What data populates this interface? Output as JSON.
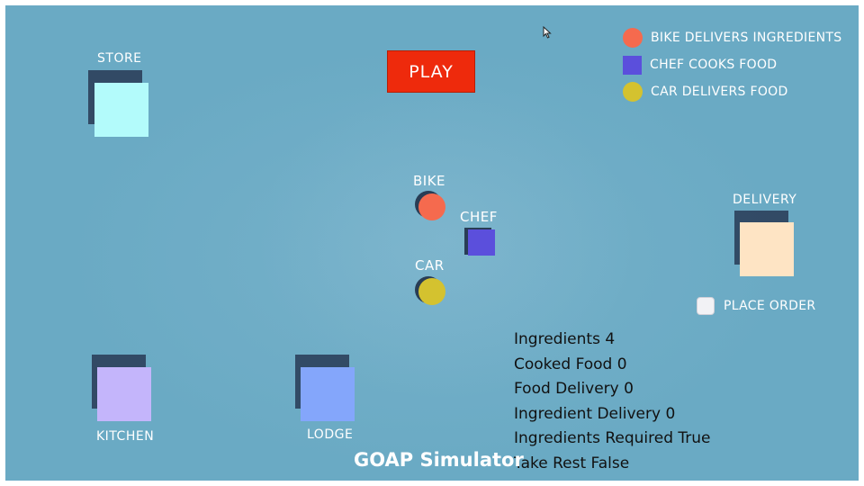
{
  "play": {
    "label": "PLAY"
  },
  "legend": [
    {
      "label": "BIKE DELIVERS INGREDIENTS",
      "shape": "circle",
      "color": "#f56a4e"
    },
    {
      "label": "CHEF COOKS FOOD",
      "shape": "square",
      "color": "#5b4fdc"
    },
    {
      "label": "CAR DELIVERS FOOD",
      "shape": "circle",
      "color": "#d4c22f"
    }
  ],
  "locations": {
    "store": {
      "label": "STORE",
      "color": "#b3fbfb"
    },
    "kitchen": {
      "label": "KITCHEN",
      "color": "#c4b5fb"
    },
    "lodge": {
      "label": "LODGE",
      "color": "#84a6fb"
    },
    "delivery": {
      "label": "DELIVERY",
      "color": "#fee4c4"
    }
  },
  "agents": {
    "bike": {
      "label": "BIKE",
      "color": "#f56a4e"
    },
    "chef": {
      "label": "CHEF",
      "color": "#5b4fdc"
    },
    "car": {
      "label": "CAR",
      "color": "#d4c22f"
    }
  },
  "place_order": {
    "label": "PLACE ORDER",
    "checked": false
  },
  "stats": [
    "Ingredients 4",
    "Cooked Food 0",
    "Food Delivery 0",
    "Ingredient Delivery 0",
    "Ingredients Required True",
    "Take Rest False"
  ],
  "title": "GOAP Simulator",
  "colors": {
    "background": "#6aaac4",
    "play_button": "#ee2a0c",
    "stat_text": "#111111"
  }
}
